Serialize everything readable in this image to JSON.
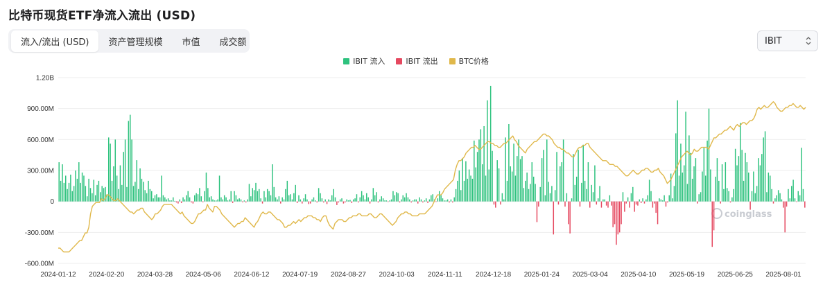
{
  "title": "比特币现货ETF净流入流出 (USD)",
  "tabs": [
    {
      "label": "流入/流出 (USD)",
      "active": true
    },
    {
      "label": "资产管理规模",
      "active": false
    },
    {
      "label": "市值",
      "active": false
    },
    {
      "label": "成交额",
      "active": false
    }
  ],
  "selector": {
    "value": "IBIT"
  },
  "watermark": "coinglass",
  "colors": {
    "inflow": "#2ec27e",
    "outflow": "#e5485f",
    "btc": "#e0b84a",
    "grid": "#eeeeee"
  },
  "chart_data": {
    "type": "bar",
    "legend": [
      "IBIT 流入",
      "IBIT 流出",
      "BTC价格"
    ],
    "legend_position": "top-center",
    "grid": true,
    "ylim": [
      -600000000,
      1200000000
    ],
    "y_ticks": [
      {
        "value": 1200000000,
        "label": "1.20B"
      },
      {
        "value": 900000000,
        "label": "900.00M"
      },
      {
        "value": 600000000,
        "label": "600.00M"
      },
      {
        "value": 300000000,
        "label": "300.00M"
      },
      {
        "value": 0,
        "label": "0"
      },
      {
        "value": -300000000,
        "label": "-300.00M"
      },
      {
        "value": -600000000,
        "label": "-600.00M"
      }
    ],
    "x_ticks": [
      "2024-01-12",
      "2024-02-20",
      "2024-03-28",
      "2024-05-06",
      "2024-06-12",
      "2024-07-19",
      "2024-08-27",
      "2024-10-03",
      "2024-11-11",
      "2024-12-18",
      "2025-01-24",
      "2025-03-04",
      "2025-04-10",
      "2025-05-19",
      "2025-06-25",
      "2025-08-01"
    ],
    "flows_millions": [
      380,
      200,
      360,
      180,
      250,
      120,
      180,
      260,
      100,
      150,
      300,
      220,
      380,
      180,
      280,
      250,
      150,
      50,
      220,
      130,
      80,
      210,
      60,
      160,
      200,
      90,
      150,
      130,
      140,
      70,
      620,
      560,
      200,
      340,
      600,
      250,
      120,
      350,
      160,
      480,
      600,
      140,
      780,
      840,
      600,
      150,
      190,
      400,
      120,
      320,
      220,
      190,
      110,
      80,
      200,
      120,
      100,
      30,
      60,
      70,
      40,
      40,
      250,
      60,
      40,
      20,
      30,
      10,
      10,
      40,
      5,
      -10,
      -20,
      20,
      -15,
      40,
      20,
      60,
      100,
      40,
      -10,
      -20,
      60,
      80,
      70,
      130,
      50,
      -8,
      100,
      280,
      130,
      40,
      50,
      20,
      10,
      10,
      20,
      250,
      40,
      20,
      60,
      40,
      10,
      20,
      100,
      -15,
      100,
      60,
      20,
      30,
      20,
      -8,
      10,
      -10,
      20,
      170,
      50,
      130,
      110,
      180,
      100,
      120,
      30,
      -20,
      100,
      40,
      120,
      100,
      60,
      360,
      140,
      40,
      20,
      50,
      -20,
      40,
      20,
      120,
      200,
      60,
      70,
      20,
      80,
      160,
      -15,
      60,
      20,
      -20,
      30,
      70,
      20,
      -25,
      -20,
      20,
      40,
      10,
      -10,
      130,
      80,
      30,
      -10,
      20,
      -25,
      20,
      10,
      60,
      120,
      40,
      -35,
      -10,
      20,
      30,
      -20,
      -10,
      20,
      10,
      15,
      -15,
      20,
      30,
      70,
      -10,
      40,
      100,
      60,
      20,
      80,
      40,
      -20,
      20,
      130,
      60,
      90,
      -10,
      20,
      50,
      30,
      10,
      10,
      -5,
      10,
      20,
      100,
      60,
      90,
      80,
      -10,
      20,
      60,
      40,
      80,
      40,
      20,
      -10,
      10,
      20,
      20,
      -20,
      40,
      20,
      -10,
      10,
      30,
      -15,
      20,
      60,
      70,
      20,
      -5,
      30,
      100,
      60,
      30,
      10,
      10,
      20,
      -10,
      20,
      -10,
      40,
      120,
      200,
      300,
      110,
      420,
      200,
      390,
      220,
      310,
      250,
      220,
      590,
      330,
      480,
      600,
      700,
      360,
      730,
      250,
      980,
      310,
      1120,
      490,
      -30,
      -60,
      400,
      320,
      -30,
      80,
      20,
      620,
      200,
      750,
      340,
      290,
      560,
      250,
      440,
      600,
      410,
      440,
      130,
      200,
      280,
      120,
      170,
      380,
      240,
      170,
      -200,
      -50,
      140,
      420,
      500,
      60,
      600,
      190,
      80,
      150,
      -320,
      110,
      480,
      -30,
      340,
      380,
      600,
      -50,
      80,
      -220,
      -310,
      30,
      460,
      160,
      240,
      500,
      -50,
      180,
      550,
      200,
      120,
      380,
      -60,
      160,
      90,
      350,
      -30,
      30,
      150,
      -60,
      20,
      20,
      -40,
      -60,
      60,
      -40,
      -250,
      -220,
      -420,
      -320,
      -300,
      -220,
      90,
      -100,
      -20,
      40,
      -60,
      80,
      140,
      -100,
      -30,
      -40,
      20,
      -15,
      30,
      -20,
      20,
      60,
      210,
      100,
      -60,
      -20,
      -110,
      -220,
      30,
      20,
      10,
      60,
      -50,
      -10,
      60,
      270,
      30,
      150,
      660,
      980,
      250,
      560,
      280,
      350,
      870,
      170,
      640,
      470,
      220,
      340,
      420,
      -20,
      70,
      90,
      290,
      520,
      250,
      590,
      900,
      310,
      -440,
      -280,
      240,
      420,
      200,
      -20,
      360,
      120,
      380,
      130,
      100,
      -10,
      40,
      120,
      510,
      350,
      440,
      760,
      500,
      200,
      470,
      380,
      280,
      -80,
      100,
      290,
      80,
      150,
      420,
      350,
      460,
      620,
      680,
      90,
      280,
      250,
      120,
      -20,
      30,
      60,
      110,
      80,
      20,
      -60,
      -300,
      -50,
      120,
      30,
      150,
      210,
      30,
      -5,
      100,
      60,
      520,
      120,
      -60
    ],
    "btc_price_series": [
      44,
      44,
      43,
      42,
      42,
      42,
      42,
      43,
      44,
      45,
      46,
      47,
      48,
      48,
      50,
      52,
      52,
      55,
      62,
      66,
      67,
      68,
      68,
      68,
      70,
      69,
      70,
      72,
      72,
      71,
      70,
      69,
      69,
      70,
      69,
      68,
      67,
      66,
      65,
      64,
      63,
      63,
      62,
      63,
      64,
      64,
      65,
      65,
      63,
      62,
      61,
      60,
      59,
      60,
      62,
      62,
      63,
      64,
      66,
      67,
      67,
      67,
      67,
      67,
      66,
      65,
      64,
      63,
      62,
      63,
      61,
      60,
      59,
      58,
      57,
      57,
      58,
      60,
      62,
      62,
      63,
      64,
      64,
      67,
      65,
      64,
      63,
      66,
      66,
      65,
      64,
      62,
      61,
      60,
      59,
      58,
      57,
      56,
      55,
      56,
      57,
      57,
      58,
      58,
      60,
      59,
      58,
      57,
      56,
      55,
      57,
      58,
      60,
      62,
      63,
      62,
      62,
      63,
      63,
      62,
      61,
      60,
      59,
      59,
      58,
      57,
      55,
      55,
      56,
      56,
      57,
      58,
      57,
      58,
      59,
      58,
      59,
      60,
      60,
      61,
      61,
      61,
      60,
      60,
      59,
      59,
      58,
      60,
      61,
      61,
      58,
      56,
      55,
      54,
      57,
      58,
      59,
      59,
      59,
      58,
      58,
      59,
      60,
      60,
      61,
      61,
      61,
      62,
      62,
      61,
      61,
      61,
      61,
      62,
      62,
      61,
      60,
      60,
      61,
      62,
      62,
      61,
      60,
      59,
      58,
      57,
      56,
      57,
      58,
      60,
      61,
      62,
      62,
      63,
      63,
      62,
      62,
      61,
      61,
      61,
      61,
      62,
      62,
      62,
      62,
      63,
      64,
      65,
      66,
      68,
      70,
      72,
      72,
      72,
      73,
      75,
      76,
      77,
      78,
      79,
      80,
      85,
      88,
      90,
      90,
      91,
      92,
      94,
      95,
      96,
      97,
      97,
      98,
      97,
      96,
      96,
      97,
      98,
      99,
      100,
      100,
      99,
      99,
      98,
      98,
      97,
      97,
      98,
      99,
      99,
      100,
      101,
      102,
      103,
      101,
      100,
      98,
      97,
      96,
      95,
      94,
      96,
      97,
      98,
      99,
      100,
      100,
      101,
      102,
      103,
      104,
      104,
      103,
      103,
      102,
      101,
      99,
      98,
      97,
      97,
      96,
      96,
      95,
      94,
      94,
      93,
      92,
      92,
      94,
      96,
      97,
      97,
      98,
      98,
      99,
      99,
      97,
      96,
      95,
      94,
      93,
      92,
      91,
      90,
      90,
      90,
      89,
      88,
      88,
      88,
      87,
      87,
      86,
      85,
      84,
      83,
      82,
      82,
      83,
      84,
      85,
      84,
      83,
      83,
      84,
      85,
      85,
      86,
      86,
      85,
      84,
      84,
      85,
      85,
      86,
      84,
      83,
      82,
      80,
      78,
      79,
      80,
      82,
      84,
      86,
      88,
      90,
      92,
      93,
      94,
      95,
      94,
      93,
      94,
      96,
      95,
      95,
      96,
      97,
      97,
      97,
      97,
      96,
      98,
      100,
      102,
      102,
      103,
      104,
      104,
      105,
      106,
      106,
      107,
      108,
      107,
      106,
      108,
      109,
      108,
      109,
      110,
      110,
      109,
      110,
      111,
      111,
      112,
      114,
      117,
      118,
      117,
      118,
      119,
      118,
      118,
      119,
      120,
      121,
      120,
      118,
      117,
      116,
      116,
      117,
      118,
      118,
      119,
      119,
      120,
      119,
      118,
      118,
      119,
      118,
      117,
      118
    ]
  }
}
